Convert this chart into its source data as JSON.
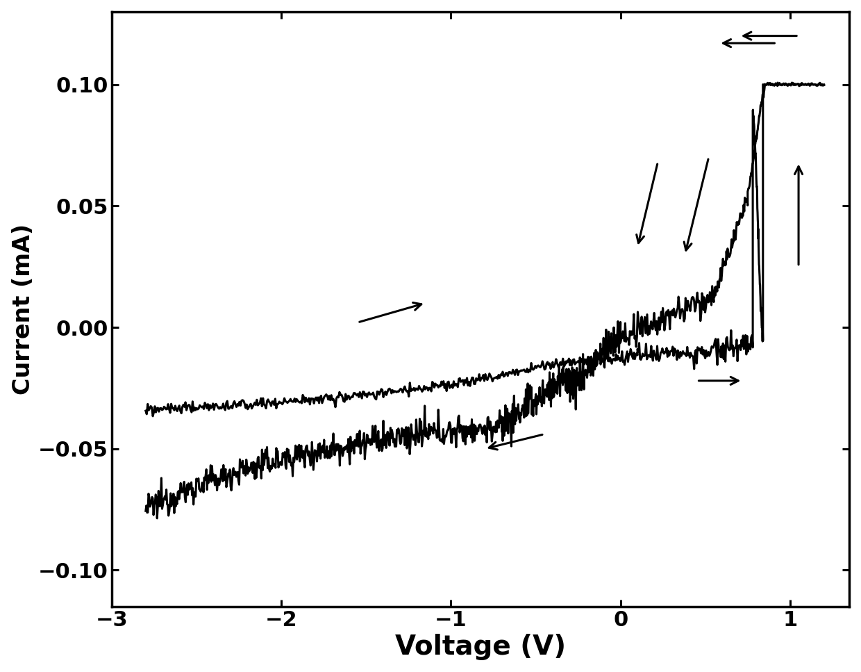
{
  "xlim": [
    -2.8,
    1.35
  ],
  "ylim": [
    -0.115,
    0.13
  ],
  "xlabel": "Voltage (V)",
  "ylabel": "Current (mA)",
  "xticks": [
    -3,
    -2,
    -1,
    0,
    1
  ],
  "yticks": [
    -0.1,
    -0.05,
    0.0,
    0.05,
    0.1
  ],
  "xlabel_fontsize": 28,
  "ylabel_fontsize": 24,
  "tick_fontsize": 22,
  "linewidth": 2.2,
  "line_color": "#000000",
  "background": "#ffffff"
}
